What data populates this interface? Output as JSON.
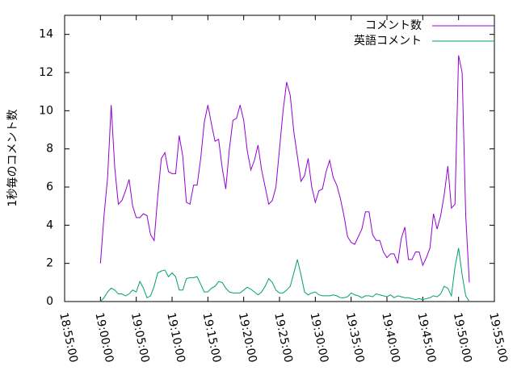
{
  "chart_data": {
    "type": "line",
    "y_label": "1秒毎のコメント数",
    "x": [
      "19:00:00",
      "19:00:30",
      "19:01:00",
      "19:01:30",
      "19:02:00",
      "19:02:30",
      "19:03:00",
      "19:03:30",
      "19:04:00",
      "19:04:30",
      "19:05:00",
      "19:05:30",
      "19:06:00",
      "19:06:30",
      "19:07:00",
      "19:07:30",
      "19:08:00",
      "19:08:30",
      "19:09:00",
      "19:09:30",
      "19:10:00",
      "19:10:30",
      "19:11:00",
      "19:11:30",
      "19:12:00",
      "19:12:30",
      "19:13:00",
      "19:13:30",
      "19:14:00",
      "19:14:30",
      "19:15:00",
      "19:15:30",
      "19:16:00",
      "19:16:30",
      "19:17:00",
      "19:17:30",
      "19:18:00",
      "19:18:30",
      "19:19:00",
      "19:19:30",
      "19:20:00",
      "19:20:30",
      "19:21:00",
      "19:21:30",
      "19:22:00",
      "19:22:30",
      "19:23:00",
      "19:23:30",
      "19:24:00",
      "19:24:30",
      "19:25:00",
      "19:25:30",
      "19:26:00",
      "19:26:30",
      "19:27:00",
      "19:27:30",
      "19:28:00",
      "19:28:30",
      "19:29:00",
      "19:29:30",
      "19:30:00",
      "19:30:30",
      "19:31:00",
      "19:31:30",
      "19:32:00",
      "19:32:30",
      "19:33:00",
      "19:33:30",
      "19:34:00",
      "19:34:30",
      "19:35:00",
      "19:35:30",
      "19:36:00",
      "19:36:30",
      "19:37:00",
      "19:37:30",
      "19:38:00",
      "19:38:30",
      "19:39:00",
      "19:39:30",
      "19:40:00",
      "19:40:30",
      "19:41:00",
      "19:41:30",
      "19:42:00",
      "19:42:30",
      "19:43:00",
      "19:43:30",
      "19:44:00",
      "19:44:30",
      "19:45:00",
      "19:45:30",
      "19:46:00",
      "19:46:30",
      "19:47:00",
      "19:47:30",
      "19:48:00",
      "19:48:30",
      "19:49:00",
      "19:49:30",
      "19:50:00",
      "19:50:30",
      "19:51:00",
      "19:51:30"
    ],
    "series": [
      {
        "name": "コメント数",
        "color": "#9400d3",
        "values": [
          2.0,
          4.5,
          6.5,
          10.3,
          7,
          5.1,
          5.3,
          5.8,
          6.4,
          5.0,
          4.4,
          4.4,
          4.6,
          4.5,
          3.5,
          3.2,
          5.5,
          7.5,
          7.8,
          6.8,
          6.7,
          6.7,
          8.7,
          7.6,
          5.2,
          5.1,
          6.1,
          6.1,
          7.5,
          9.4,
          10.3,
          9.3,
          8.4,
          8.5,
          7,
          5.9,
          8,
          9.5,
          9.6,
          10.3,
          9.5,
          7.9,
          6.9,
          7.4,
          8.2,
          6.9,
          6.0,
          5.1,
          5.3,
          6,
          8,
          10,
          11.5,
          10.8,
          8.9,
          7.6,
          6.3,
          6.6,
          7.5,
          6,
          5.2,
          5.8,
          5.9,
          6.8,
          7.4,
          6.5,
          6.1,
          5.4,
          4.5,
          3.4,
          3.1,
          3.0,
          3.4,
          3.8,
          4.7,
          4.7,
          3.5,
          3.2,
          3.2,
          2.6,
          2.3,
          2.5,
          2.5,
          2.0,
          3.3,
          3.9,
          2.2,
          2.2,
          2.6,
          2.6,
          1.9,
          2.3,
          2.8,
          4.6,
          3.8,
          4.5,
          5.6,
          7.1,
          4.9,
          5.1,
          12.9,
          12.0,
          4.5,
          1.0
        ]
      },
      {
        "name": "英語コメント",
        "color": "#009e73",
        "values": [
          0,
          0.2,
          0.5,
          0.7,
          0.6,
          0.4,
          0.4,
          0.3,
          0.4,
          0.6,
          0.5,
          1.05,
          0.7,
          0.2,
          0.3,
          0.8,
          1.5,
          1.6,
          1.65,
          1.3,
          1.5,
          1.3,
          0.6,
          0.6,
          1.2,
          1.25,
          1.25,
          1.3,
          0.9,
          0.5,
          0.5,
          0.7,
          0.8,
          1.05,
          1.0,
          0.7,
          0.5,
          0.45,
          0.45,
          0.45,
          0.6,
          0.75,
          0.65,
          0.5,
          0.35,
          0.5,
          0.8,
          1.2,
          1.0,
          0.6,
          0.45,
          0.45,
          0.6,
          0.8,
          1.5,
          2.2,
          1.4,
          0.5,
          0.35,
          0.45,
          0.5,
          0.35,
          0.3,
          0.3,
          0.3,
          0.35,
          0.3,
          0.2,
          0.2,
          0.25,
          0.45,
          0.35,
          0.3,
          0.2,
          0.3,
          0.3,
          0.25,
          0.4,
          0.35,
          0.3,
          0.25,
          0.35,
          0.2,
          0.3,
          0.25,
          0.2,
          0.2,
          0.15,
          0.1,
          0.15,
          0.1,
          0.15,
          0.2,
          0.3,
          0.25,
          0.4,
          0.8,
          0.7,
          0.3,
          1.8,
          2.8,
          1.4,
          0.3,
          0
        ]
      }
    ],
    "xlim": [
      "18:55:00",
      "19:55:00"
    ],
    "xticks": [
      "18:55:00",
      "19:00:00",
      "19:05:00",
      "19:10:00",
      "19:15:00",
      "19:20:00",
      "19:25:00",
      "19:30:00",
      "19:35:00",
      "19:40:00",
      "19:45:00",
      "19:50:00",
      "19:55:00"
    ],
    "ylim": [
      0,
      15
    ],
    "yticks": [
      0,
      2,
      4,
      6,
      8,
      10,
      12,
      14
    ],
    "grid": false,
    "legend": "top-right"
  }
}
